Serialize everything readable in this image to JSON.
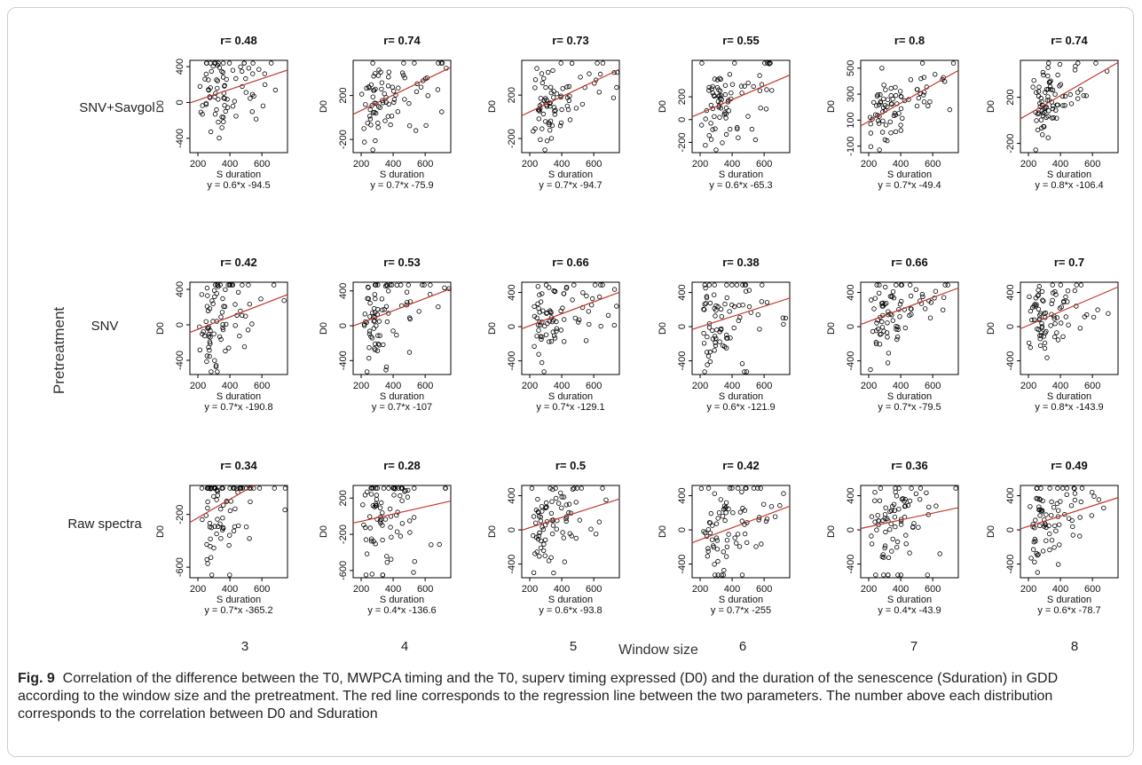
{
  "figure": {
    "y_group_label": "Pretreatment",
    "x_group_label": "Window size",
    "row_labels": [
      "SNV+Savgol",
      "SNV",
      "Raw spectra"
    ],
    "col_labels": [
      "3",
      "4",
      "5",
      "6",
      "7",
      "8"
    ],
    "caption_label": "Fig. 9",
    "caption_text": "Correlation of the difference between the T0, MWPCA timing and the T0, superv timing expressed (D0) and the duration of the senescence (Sduration) in GDD according to the window size and the pretreatment. The red line corresponds to the regression line between the two parameters. The number above each distribution corresponds to the correlation between D0 and Sduration"
  },
  "colors": {
    "regression_line": "#c0392b",
    "points": "#000000",
    "frame": "#cfcfcf"
  },
  "chart_data": [
    {
      "type": "scatter",
      "row": 0,
      "col": 0,
      "title": "r= 0.48",
      "xlabel": "S duration",
      "ylabel": "D0",
      "equation": "y = 0.6*x -94.5",
      "xlim": [
        150,
        760
      ],
      "ylim": [
        -560,
        470
      ],
      "xticks": [
        200,
        400,
        600
      ],
      "yticks": [
        -400,
        0,
        400
      ],
      "slope": 0.6,
      "intercept": -94.5,
      "r": 0.48
    },
    {
      "type": "scatter",
      "row": 0,
      "col": 1,
      "title": "r= 0.74",
      "xlabel": "S duration",
      "ylabel": "D0",
      "equation": "y = 0.7*x -75.9",
      "xlim": [
        150,
        760
      ],
      "ylim": [
        -320,
        520
      ],
      "xticks": [
        200,
        400,
        600
      ],
      "yticks": [
        -200,
        200
      ],
      "slope": 0.7,
      "intercept": -75.9,
      "r": 0.74
    },
    {
      "type": "scatter",
      "row": 0,
      "col": 2,
      "title": "r= 0.73",
      "xlabel": "S duration",
      "ylabel": "D0",
      "equation": "y = 0.7*x -94.7",
      "xlim": [
        150,
        760
      ],
      "ylim": [
        -330,
        520
      ],
      "xticks": [
        200,
        400,
        600
      ],
      "yticks": [
        -200,
        200
      ],
      "slope": 0.7,
      "intercept": -94.7,
      "r": 0.73
    },
    {
      "type": "scatter",
      "row": 0,
      "col": 3,
      "title": "r= 0.55",
      "xlabel": "S duration",
      "ylabel": "D0",
      "equation": "y = 0.6*x -65.3",
      "xlim": [
        150,
        760
      ],
      "ylim": [
        -290,
        520
      ],
      "xticks": [
        200,
        400,
        600
      ],
      "yticks": [
        -200,
        0,
        200
      ],
      "slope": 0.6,
      "intercept": -65.3,
      "r": 0.55
    },
    {
      "type": "scatter",
      "row": 0,
      "col": 4,
      "title": "r= 0.8",
      "xlabel": "S duration",
      "ylabel": "D0",
      "equation": "y = 0.7*x -49.4",
      "xlim": [
        150,
        760
      ],
      "ylim": [
        -150,
        560
      ],
      "xticks": [
        200,
        400,
        600
      ],
      "yticks": [
        -100,
        100,
        300,
        500
      ],
      "slope": 0.7,
      "intercept": -49.4,
      "r": 0.8
    },
    {
      "type": "scatter",
      "row": 0,
      "col": 5,
      "title": "r= 0.74",
      "xlabel": "S duration",
      "ylabel": "D0",
      "equation": "y = 0.8*x -106.4",
      "xlim": [
        150,
        760
      ],
      "ylim": [
        -280,
        520
      ],
      "xticks": [
        200,
        400,
        600
      ],
      "yticks": [
        -200,
        200
      ],
      "slope": 0.8,
      "intercept": -106.4,
      "r": 0.74
    },
    {
      "type": "scatter",
      "row": 1,
      "col": 0,
      "title": "r= 0.42",
      "xlabel": "S duration",
      "ylabel": "D0",
      "equation": "y = 0.7*x -190.8",
      "xlim": [
        150,
        760
      ],
      "ylim": [
        -560,
        480
      ],
      "xticks": [
        200,
        400,
        600
      ],
      "yticks": [
        -400,
        0,
        400
      ],
      "slope": 0.7,
      "intercept": -190.8,
      "r": 0.42
    },
    {
      "type": "scatter",
      "row": 1,
      "col": 1,
      "title": "r= 0.53",
      "xlabel": "S duration",
      "ylabel": "D0",
      "equation": "y = 0.7*x -107",
      "xlim": [
        150,
        760
      ],
      "ylim": [
        -560,
        500
      ],
      "xticks": [
        200,
        400,
        600
      ],
      "yticks": [
        -400,
        0,
        400
      ],
      "slope": 0.7,
      "intercept": -107,
      "r": 0.53
    },
    {
      "type": "scatter",
      "row": 1,
      "col": 2,
      "title": "r= 0.66",
      "xlabel": "S duration",
      "ylabel": "D0",
      "equation": "y = 0.7*x -129.1",
      "xlim": [
        150,
        760
      ],
      "ylim": [
        -560,
        520
      ],
      "xticks": [
        200,
        400,
        600
      ],
      "yticks": [
        -400,
        0,
        400
      ],
      "slope": 0.7,
      "intercept": -129.1,
      "r": 0.66
    },
    {
      "type": "scatter",
      "row": 1,
      "col": 3,
      "title": "r= 0.38",
      "xlabel": "S duration",
      "ylabel": "D0",
      "equation": "y = 0.6*x -121.9",
      "xlim": [
        150,
        760
      ],
      "ylim": [
        -560,
        520
      ],
      "xticks": [
        200,
        400,
        600
      ],
      "yticks": [
        -400,
        0,
        400
      ],
      "slope": 0.6,
      "intercept": -121.9,
      "r": 0.38
    },
    {
      "type": "scatter",
      "row": 1,
      "col": 4,
      "title": "r= 0.66",
      "xlabel": "S duration",
      "ylabel": "D0",
      "equation": "y = 0.7*x -79.5",
      "xlim": [
        150,
        760
      ],
      "ylim": [
        -560,
        520
      ],
      "xticks": [
        200,
        400,
        600
      ],
      "yticks": [
        -400,
        0,
        400
      ],
      "slope": 0.7,
      "intercept": -79.5,
      "r": 0.66
    },
    {
      "type": "scatter",
      "row": 1,
      "col": 5,
      "title": "r= 0.7",
      "xlabel": "S duration",
      "ylabel": "D0",
      "equation": "y = 0.8*x -143.9",
      "xlim": [
        150,
        760
      ],
      "ylim": [
        -560,
        520
      ],
      "xticks": [
        200,
        400,
        600
      ],
      "yticks": [
        -400,
        0,
        400
      ],
      "slope": 0.8,
      "intercept": -143.9,
      "r": 0.7
    },
    {
      "type": "scatter",
      "row": 2,
      "col": 0,
      "title": "r= 0.34",
      "xlabel": "S duration",
      "ylabel": "D0",
      "equation": "y = 0.7*x -365.2",
      "xlim": [
        150,
        760
      ],
      "ylim": [
        -680,
        20
      ],
      "xticks": [
        200,
        400,
        600
      ],
      "yticks": [
        -600,
        -200
      ],
      "slope": 0.7,
      "intercept": -365.2,
      "r": 0.34
    },
    {
      "type": "scatter",
      "row": 2,
      "col": 1,
      "title": "r= 0.28",
      "xlabel": "S duration",
      "ylabel": "D0",
      "equation": "y = 0.4*x -136.6",
      "xlim": [
        150,
        760
      ],
      "ylim": [
        -680,
        340
      ],
      "xticks": [
        200,
        400,
        600
      ],
      "yticks": [
        -600,
        -200,
        200
      ],
      "slope": 0.4,
      "intercept": -136.6,
      "r": 0.28
    },
    {
      "type": "scatter",
      "row": 2,
      "col": 2,
      "title": "r= 0.5",
      "xlabel": "S duration",
      "ylabel": "D0",
      "equation": "y = 0.6*x -93.8",
      "xlim": [
        150,
        760
      ],
      "ylim": [
        -560,
        520
      ],
      "xticks": [
        200,
        400,
        600
      ],
      "yticks": [
        -400,
        0,
        400
      ],
      "slope": 0.6,
      "intercept": -93.8,
      "r": 0.5
    },
    {
      "type": "scatter",
      "row": 2,
      "col": 3,
      "title": "r= 0.42",
      "xlabel": "S duration",
      "ylabel": "D0",
      "equation": "y = 0.7*x -255",
      "xlim": [
        150,
        760
      ],
      "ylim": [
        -560,
        520
      ],
      "xticks": [
        200,
        400,
        600
      ],
      "yticks": [
        -400,
        0,
        400
      ],
      "slope": 0.7,
      "intercept": -255,
      "r": 0.42
    },
    {
      "type": "scatter",
      "row": 2,
      "col": 4,
      "title": "r= 0.36",
      "xlabel": "S duration",
      "ylabel": "D0",
      "equation": "y = 0.4*x -43.9",
      "xlim": [
        150,
        760
      ],
      "ylim": [
        -560,
        520
      ],
      "xticks": [
        200,
        400,
        600
      ],
      "yticks": [
        -400,
        0,
        400
      ],
      "slope": 0.4,
      "intercept": -43.9,
      "r": 0.36
    },
    {
      "type": "scatter",
      "row": 2,
      "col": 5,
      "title": "r= 0.49",
      "xlabel": "S duration",
      "ylabel": "D0",
      "equation": "y = 0.6*x -78.7",
      "xlim": [
        150,
        760
      ],
      "ylim": [
        -560,
        520
      ],
      "xticks": [
        200,
        400,
        600
      ],
      "yticks": [
        -400,
        0,
        400
      ],
      "slope": 0.6,
      "intercept": -78.7,
      "r": 0.49
    }
  ]
}
